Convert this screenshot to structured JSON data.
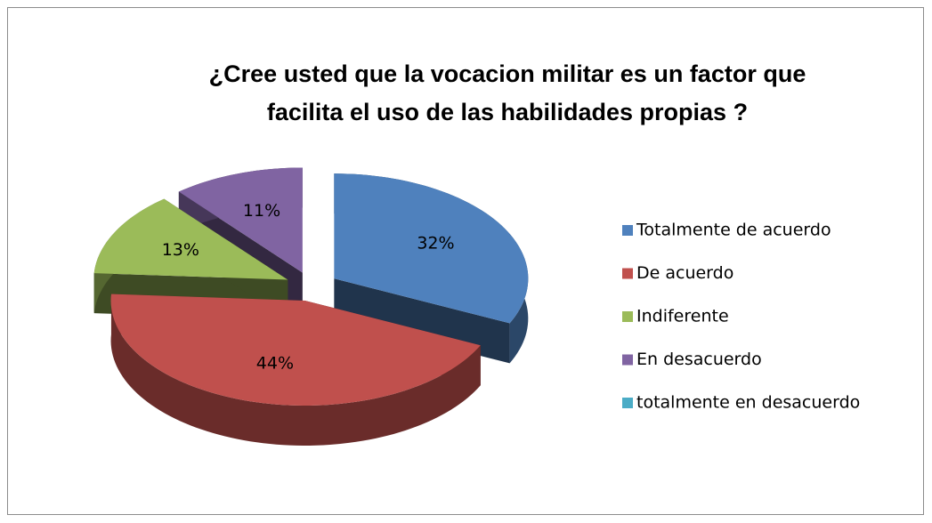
{
  "chart_data": {
    "type": "pie3d",
    "title": "¿Cree usted que la vocacion militar es un factor que facilita el uso de las habilidades propias ?",
    "categories": [
      "Totalmente de acuerdo",
      "De acuerdo",
      "Indiferente",
      "En desacuerdo",
      "totalmente en desacuerdo"
    ],
    "values": [
      32,
      44,
      13,
      11,
      0
    ],
    "value_labels": [
      "32%",
      "44%",
      "13%",
      "11%",
      null
    ],
    "colors": [
      "#4f81bd",
      "#c0504d",
      "#9bbb59",
      "#8064a2",
      "#4bacc6"
    ],
    "legend": "right"
  }
}
